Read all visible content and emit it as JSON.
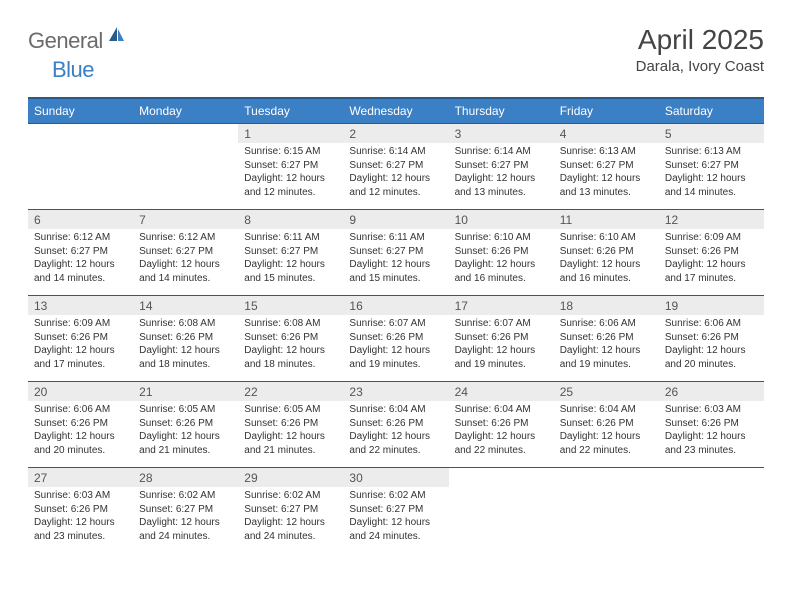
{
  "logo": {
    "general": "General",
    "blue": "Blue"
  },
  "title": "April 2025",
  "location": "Darala, Ivory Coast",
  "colors": {
    "header_bg": "#3b7fc4",
    "header_border": "#2a5a8a",
    "daynum_bg": "#ececec",
    "page_bg": "#ffffff"
  },
  "weekdays": [
    "Sunday",
    "Monday",
    "Tuesday",
    "Wednesday",
    "Thursday",
    "Friday",
    "Saturday"
  ],
  "weeks": [
    [
      null,
      null,
      {
        "n": "1",
        "sr": "Sunrise: 6:15 AM",
        "ss": "Sunset: 6:27 PM",
        "d1": "Daylight: 12 hours",
        "d2": "and 12 minutes."
      },
      {
        "n": "2",
        "sr": "Sunrise: 6:14 AM",
        "ss": "Sunset: 6:27 PM",
        "d1": "Daylight: 12 hours",
        "d2": "and 12 minutes."
      },
      {
        "n": "3",
        "sr": "Sunrise: 6:14 AM",
        "ss": "Sunset: 6:27 PM",
        "d1": "Daylight: 12 hours",
        "d2": "and 13 minutes."
      },
      {
        "n": "4",
        "sr": "Sunrise: 6:13 AM",
        "ss": "Sunset: 6:27 PM",
        "d1": "Daylight: 12 hours",
        "d2": "and 13 minutes."
      },
      {
        "n": "5",
        "sr": "Sunrise: 6:13 AM",
        "ss": "Sunset: 6:27 PM",
        "d1": "Daylight: 12 hours",
        "d2": "and 14 minutes."
      }
    ],
    [
      {
        "n": "6",
        "sr": "Sunrise: 6:12 AM",
        "ss": "Sunset: 6:27 PM",
        "d1": "Daylight: 12 hours",
        "d2": "and 14 minutes."
      },
      {
        "n": "7",
        "sr": "Sunrise: 6:12 AM",
        "ss": "Sunset: 6:27 PM",
        "d1": "Daylight: 12 hours",
        "d2": "and 14 minutes."
      },
      {
        "n": "8",
        "sr": "Sunrise: 6:11 AM",
        "ss": "Sunset: 6:27 PM",
        "d1": "Daylight: 12 hours",
        "d2": "and 15 minutes."
      },
      {
        "n": "9",
        "sr": "Sunrise: 6:11 AM",
        "ss": "Sunset: 6:27 PM",
        "d1": "Daylight: 12 hours",
        "d2": "and 15 minutes."
      },
      {
        "n": "10",
        "sr": "Sunrise: 6:10 AM",
        "ss": "Sunset: 6:26 PM",
        "d1": "Daylight: 12 hours",
        "d2": "and 16 minutes."
      },
      {
        "n": "11",
        "sr": "Sunrise: 6:10 AM",
        "ss": "Sunset: 6:26 PM",
        "d1": "Daylight: 12 hours",
        "d2": "and 16 minutes."
      },
      {
        "n": "12",
        "sr": "Sunrise: 6:09 AM",
        "ss": "Sunset: 6:26 PM",
        "d1": "Daylight: 12 hours",
        "d2": "and 17 minutes."
      }
    ],
    [
      {
        "n": "13",
        "sr": "Sunrise: 6:09 AM",
        "ss": "Sunset: 6:26 PM",
        "d1": "Daylight: 12 hours",
        "d2": "and 17 minutes."
      },
      {
        "n": "14",
        "sr": "Sunrise: 6:08 AM",
        "ss": "Sunset: 6:26 PM",
        "d1": "Daylight: 12 hours",
        "d2": "and 18 minutes."
      },
      {
        "n": "15",
        "sr": "Sunrise: 6:08 AM",
        "ss": "Sunset: 6:26 PM",
        "d1": "Daylight: 12 hours",
        "d2": "and 18 minutes."
      },
      {
        "n": "16",
        "sr": "Sunrise: 6:07 AM",
        "ss": "Sunset: 6:26 PM",
        "d1": "Daylight: 12 hours",
        "d2": "and 19 minutes."
      },
      {
        "n": "17",
        "sr": "Sunrise: 6:07 AM",
        "ss": "Sunset: 6:26 PM",
        "d1": "Daylight: 12 hours",
        "d2": "and 19 minutes."
      },
      {
        "n": "18",
        "sr": "Sunrise: 6:06 AM",
        "ss": "Sunset: 6:26 PM",
        "d1": "Daylight: 12 hours",
        "d2": "and 19 minutes."
      },
      {
        "n": "19",
        "sr": "Sunrise: 6:06 AM",
        "ss": "Sunset: 6:26 PM",
        "d1": "Daylight: 12 hours",
        "d2": "and 20 minutes."
      }
    ],
    [
      {
        "n": "20",
        "sr": "Sunrise: 6:06 AM",
        "ss": "Sunset: 6:26 PM",
        "d1": "Daylight: 12 hours",
        "d2": "and 20 minutes."
      },
      {
        "n": "21",
        "sr": "Sunrise: 6:05 AM",
        "ss": "Sunset: 6:26 PM",
        "d1": "Daylight: 12 hours",
        "d2": "and 21 minutes."
      },
      {
        "n": "22",
        "sr": "Sunrise: 6:05 AM",
        "ss": "Sunset: 6:26 PM",
        "d1": "Daylight: 12 hours",
        "d2": "and 21 minutes."
      },
      {
        "n": "23",
        "sr": "Sunrise: 6:04 AM",
        "ss": "Sunset: 6:26 PM",
        "d1": "Daylight: 12 hours",
        "d2": "and 22 minutes."
      },
      {
        "n": "24",
        "sr": "Sunrise: 6:04 AM",
        "ss": "Sunset: 6:26 PM",
        "d1": "Daylight: 12 hours",
        "d2": "and 22 minutes."
      },
      {
        "n": "25",
        "sr": "Sunrise: 6:04 AM",
        "ss": "Sunset: 6:26 PM",
        "d1": "Daylight: 12 hours",
        "d2": "and 22 minutes."
      },
      {
        "n": "26",
        "sr": "Sunrise: 6:03 AM",
        "ss": "Sunset: 6:26 PM",
        "d1": "Daylight: 12 hours",
        "d2": "and 23 minutes."
      }
    ],
    [
      {
        "n": "27",
        "sr": "Sunrise: 6:03 AM",
        "ss": "Sunset: 6:26 PM",
        "d1": "Daylight: 12 hours",
        "d2": "and 23 minutes."
      },
      {
        "n": "28",
        "sr": "Sunrise: 6:02 AM",
        "ss": "Sunset: 6:27 PM",
        "d1": "Daylight: 12 hours",
        "d2": "and 24 minutes."
      },
      {
        "n": "29",
        "sr": "Sunrise: 6:02 AM",
        "ss": "Sunset: 6:27 PM",
        "d1": "Daylight: 12 hours",
        "d2": "and 24 minutes."
      },
      {
        "n": "30",
        "sr": "Sunrise: 6:02 AM",
        "ss": "Sunset: 6:27 PM",
        "d1": "Daylight: 12 hours",
        "d2": "and 24 minutes."
      },
      null,
      null,
      null
    ]
  ]
}
